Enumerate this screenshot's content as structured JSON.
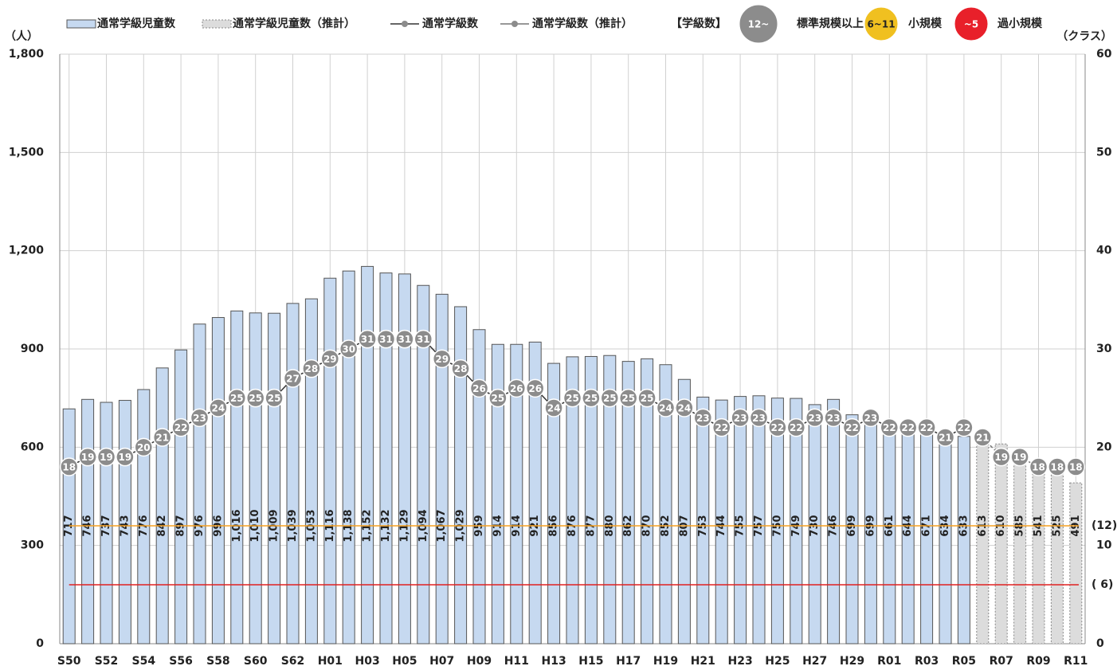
{
  "chart_data": {
    "type": "bar-line",
    "categories": [
      "S50",
      null,
      "S52",
      null,
      "S54",
      null,
      "S56",
      null,
      "S58",
      null,
      "S60",
      null,
      "S62",
      null,
      "H01",
      null,
      "H03",
      null,
      "H05",
      null,
      "H07",
      null,
      "H09",
      null,
      "H11",
      null,
      "H13",
      null,
      "H15",
      null,
      "H17",
      null,
      "H19",
      null,
      "H21",
      null,
      "H23",
      null,
      "H25",
      null,
      "H27",
      null,
      "H29",
      null,
      "R01",
      null,
      "R03",
      null,
      "R05",
      null,
      "R07",
      null,
      "R09",
      null,
      "R11"
    ],
    "series": [
      {
        "name": "通常学級児童数",
        "kind": "bar",
        "color": "#c6d9f0",
        "values": [
          717,
          746,
          737,
          743,
          776,
          842,
          897,
          976,
          996,
          1016,
          1010,
          1009,
          1039,
          1053,
          1116,
          1138,
          1152,
          1132,
          1129,
          1094,
          1067,
          1029,
          959,
          914,
          914,
          921,
          856,
          876,
          877,
          880,
          862,
          870,
          852,
          807,
          753,
          744,
          755,
          757,
          750,
          749,
          730,
          746,
          699,
          699,
          661,
          644,
          671,
          634,
          633,
          null,
          null,
          null,
          null,
          null,
          null
        ],
        "value_labels": [
          "717",
          "746",
          "737",
          "743",
          "776",
          "842",
          "897",
          "976",
          "996",
          "1,016",
          "1,010",
          "1,009",
          "1,039",
          "1,053",
          "1,116",
          "1,138",
          "1,152",
          "1,132",
          "1,129",
          "1,094",
          "1,067",
          "1,029",
          "959",
          "914",
          "914",
          "921",
          "856",
          "876",
          "877",
          "880",
          "862",
          "870",
          "852",
          "807",
          "753",
          "744",
          "755",
          "757",
          "750",
          "749",
          "730",
          "746",
          "699",
          "699",
          "661",
          "644",
          "671",
          "634",
          "633",
          null,
          null,
          null,
          null,
          null,
          null
        ]
      },
      {
        "name": "通常学級児童数（推計）",
        "kind": "bar",
        "color": "#dcdcdc",
        "values": [
          null,
          null,
          null,
          null,
          null,
          null,
          null,
          null,
          null,
          null,
          null,
          null,
          null,
          null,
          null,
          null,
          null,
          null,
          null,
          null,
          null,
          null,
          null,
          null,
          null,
          null,
          null,
          null,
          null,
          null,
          null,
          null,
          null,
          null,
          null,
          null,
          null,
          null,
          null,
          null,
          null,
          null,
          null,
          null,
          null,
          null,
          null,
          null,
          null,
          613,
          610,
          585,
          541,
          525,
          491
        ]
      },
      {
        "name": "通常学級数",
        "kind": "line",
        "axis": "y2",
        "color": "#333333",
        "values": [
          18,
          19,
          19,
          19,
          20,
          21,
          22,
          23,
          24,
          25,
          25,
          25,
          27,
          28,
          29,
          30,
          31,
          31,
          31,
          31,
          29,
          28,
          26,
          25,
          26,
          26,
          24,
          25,
          25,
          25,
          25,
          25,
          24,
          24,
          23,
          22,
          23,
          23,
          22,
          22,
          23,
          23,
          22,
          23,
          22,
          22,
          22,
          21,
          22,
          null,
          null,
          null,
          null,
          null,
          null
        ]
      },
      {
        "name": "通常学級数（推計）",
        "kind": "line",
        "axis": "y2",
        "color": "#777777",
        "values": [
          null,
          null,
          null,
          null,
          null,
          null,
          null,
          null,
          null,
          null,
          null,
          null,
          null,
          null,
          null,
          null,
          null,
          null,
          null,
          null,
          null,
          null,
          null,
          null,
          null,
          null,
          null,
          null,
          null,
          null,
          null,
          null,
          null,
          null,
          null,
          null,
          null,
          null,
          null,
          null,
          null,
          null,
          null,
          null,
          null,
          null,
          null,
          null,
          null,
          21,
          19,
          19,
          18,
          18,
          18
        ]
      }
    ],
    "ylim": [
      0,
      1800
    ],
    "yticks": [
      0,
      300,
      600,
      900,
      {
        "value": 1200,
        "label": "1,200"
      },
      {
        "value": 1500,
        "label": "1,500"
      },
      {
        "value": 1800,
        "label": "1,800"
      }
    ],
    "y2lim": [
      0,
      60
    ],
    "y2ticks": [
      0,
      10,
      20,
      30,
      40,
      50,
      60
    ],
    "ylabel": "（人）",
    "y2label": "（クラス）",
    "grid": true,
    "scale_title": "【学級数】",
    "scale": [
      {
        "mark": "12~",
        "name": "標準規模以上",
        "color": "#8c8c8c"
      },
      {
        "mark": "6~11",
        "name": "小規模",
        "color": "#f0c020"
      },
      {
        "mark": "~5",
        "name": "過小規模",
        "color": "#e8202a"
      }
    ],
    "reference_lines": [
      {
        "value": 12,
        "label": "(12)",
        "color": "#f5a020"
      },
      {
        "value": 6,
        "label": "( 6)",
        "color": "#e02020"
      }
    ]
  }
}
